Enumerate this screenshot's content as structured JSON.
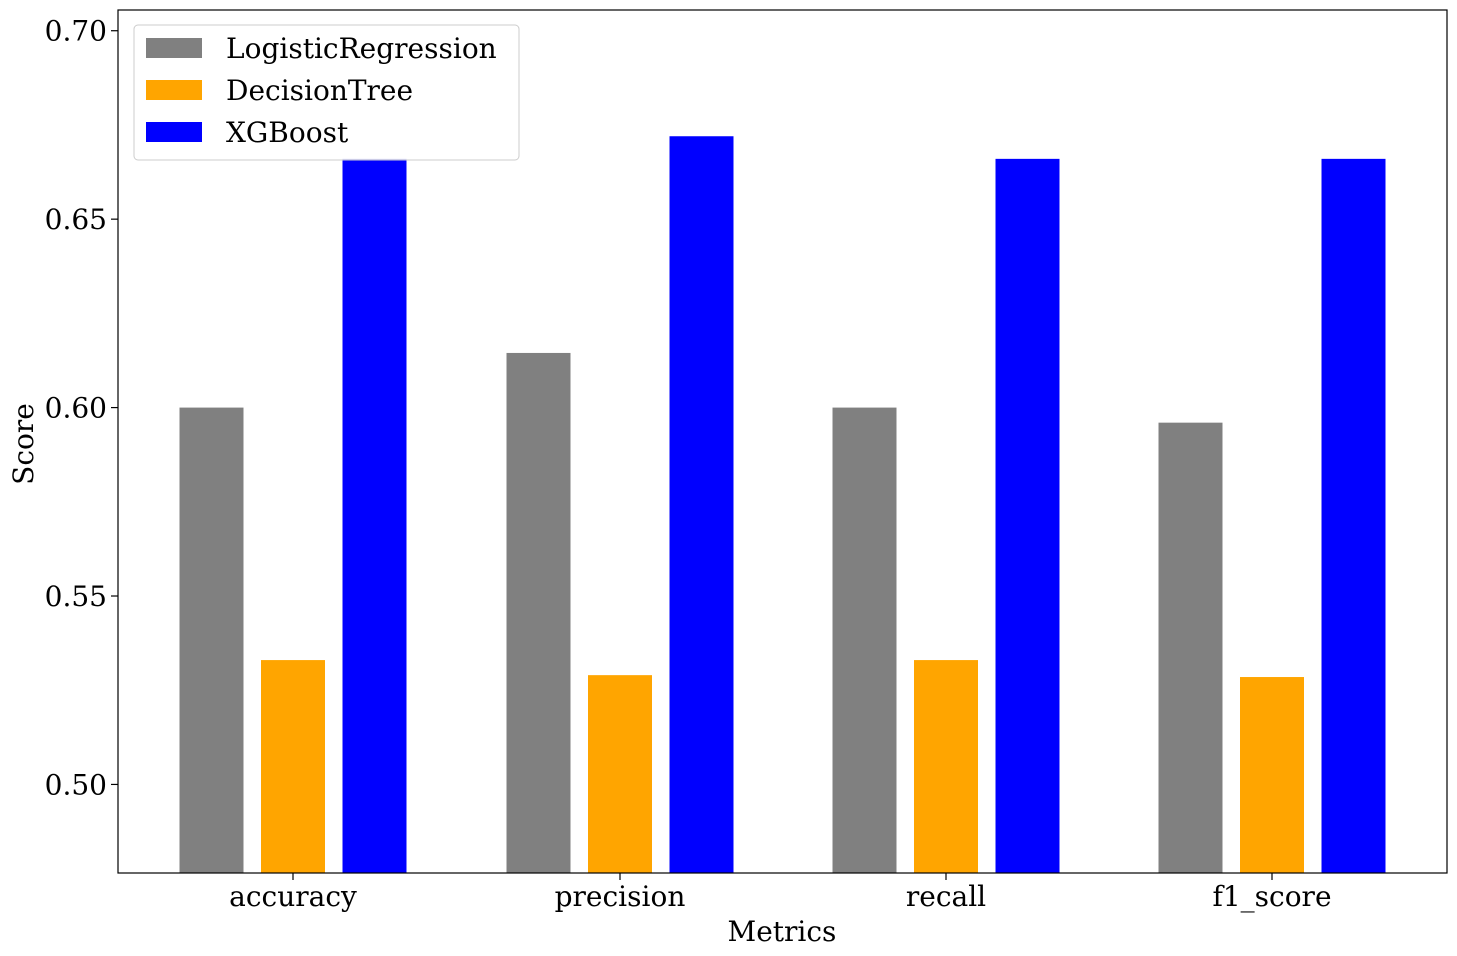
{
  "chart_data": {
    "type": "bar",
    "categories": [
      "accuracy",
      "precision",
      "recall",
      "f1_score"
    ],
    "series": [
      {
        "name": "LogisticRegression",
        "color": "#808080",
        "values": [
          0.6,
          0.6145,
          0.6,
          0.596
        ]
      },
      {
        "name": "DecisionTree",
        "color": "#FFA500",
        "values": [
          0.533,
          0.529,
          0.533,
          0.5285
        ]
      },
      {
        "name": "XGBoost",
        "color": "#0000FF",
        "values": [
          0.666,
          0.672,
          0.666,
          0.666
        ]
      }
    ],
    "xlabel": "Metrics",
    "ylabel": "Score",
    "ylim": [
      0.4765,
      0.7055
    ],
    "yticks": [
      0.5,
      0.55,
      0.6,
      0.65,
      0.7
    ],
    "ytick_labels": [
      "0.50",
      "0.55",
      "0.60",
      "0.65",
      "0.70"
    ],
    "legend_position": "top-left",
    "grid": false
  }
}
